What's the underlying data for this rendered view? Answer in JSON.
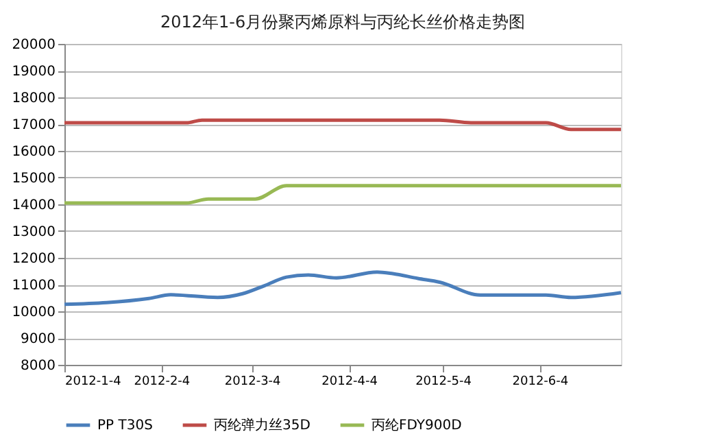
{
  "chart_data": {
    "type": "line",
    "title": "2012年1-6月份聚丙烯原料与丙纶长丝价格走势图",
    "xlim": [
      "2012-01-04",
      "2012-06-30"
    ],
    "xticks": [
      {
        "value": "2012-01-04",
        "label": "2012-1-4"
      },
      {
        "value": "2012-02-04",
        "label": "2012-2-4"
      },
      {
        "value": "2012-03-04",
        "label": "2012-3-4"
      },
      {
        "value": "2012-04-04",
        "label": "2012-4-4"
      },
      {
        "value": "2012-05-04",
        "label": "2012-5-4"
      },
      {
        "value": "2012-06-04",
        "label": "2012-6-4"
      }
    ],
    "ylim": [
      8000,
      20000
    ],
    "yticks": [
      8000,
      9000,
      10000,
      11000,
      12000,
      13000,
      14000,
      15000,
      16000,
      17000,
      18000,
      19000,
      20000
    ],
    "grid": "y",
    "legend": "bottom",
    "marker": "none",
    "line_style": "solid",
    "series": [
      {
        "name": "PP T30S",
        "color": "#4a7ebb",
        "x": [
          "2012-01-04",
          "2012-01-31",
          "2012-02-07",
          "2012-02-22",
          "2012-03-01",
          "2012-03-08",
          "2012-03-15",
          "2012-03-22",
          "2012-03-31",
          "2012-04-13",
          "2012-04-18",
          "2012-04-26",
          "2012-05-03",
          "2012-05-16",
          "2012-06-06",
          "2012-06-14",
          "2012-06-30"
        ],
        "values": [
          10260,
          10480,
          10620,
          10520,
          10660,
          10960,
          11280,
          11360,
          11250,
          11470,
          11410,
          11230,
          11090,
          10610,
          10610,
          10520,
          10700
        ]
      },
      {
        "name": "丙纶弹力丝35D",
        "color": "#be4b48",
        "x": [
          "2012-01-04",
          "2012-02-12",
          "2012-02-17",
          "2012-05-03",
          "2012-05-13",
          "2012-06-06",
          "2012-06-14",
          "2012-06-30"
        ],
        "values": [
          17050,
          17050,
          17150,
          17150,
          17050,
          17050,
          16800,
          16800
        ]
      },
      {
        "name": "丙纶FDY900D",
        "color": "#98b954",
        "x": [
          "2012-01-04",
          "2012-02-12",
          "2012-02-19",
          "2012-03-05",
          "2012-03-15",
          "2012-06-30"
        ],
        "values": [
          14050,
          14050,
          14200,
          14200,
          14700,
          14700
        ]
      }
    ]
  }
}
